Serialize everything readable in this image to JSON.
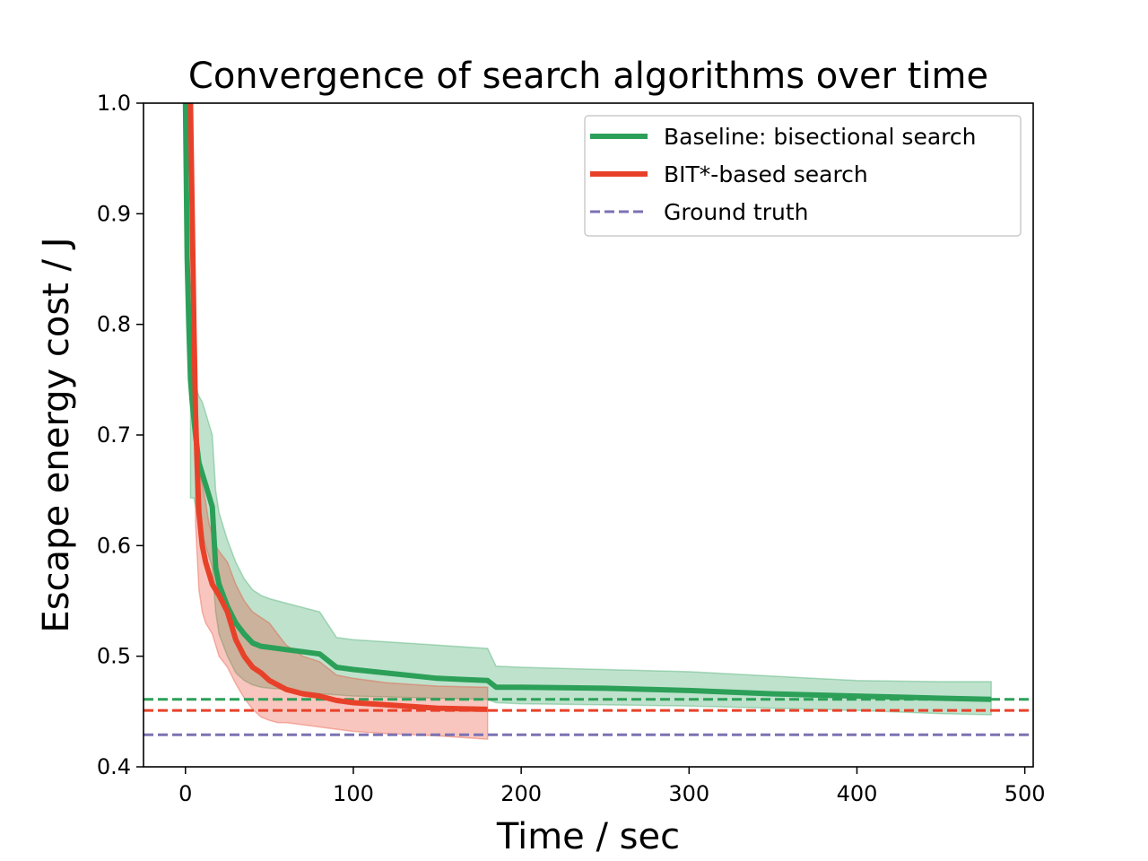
{
  "chart_data": {
    "type": "line",
    "title": "Convergence of search algorithms over time",
    "xlabel": "Time / sec",
    "ylabel": "Escape energy cost / J",
    "xlim": [
      -25,
      505
    ],
    "ylim": [
      0.4,
      1.0
    ],
    "xticks": [
      "0",
      "100",
      "200",
      "300",
      "400",
      "500"
    ],
    "yticks": [
      "0.4",
      "0.5",
      "0.6",
      "0.7",
      "0.8",
      "0.9",
      "1.0"
    ],
    "legend_position": "upper right",
    "grid": false,
    "series": [
      {
        "name": "Baseline: bisectional search",
        "color": "#2ca058",
        "x": [
          0,
          1,
          2,
          3,
          4,
          6,
          8,
          10,
          12,
          14,
          16,
          18,
          20,
          25,
          30,
          35,
          40,
          45,
          50,
          60,
          70,
          80,
          90,
          100,
          150,
          180,
          185,
          200,
          250,
          300,
          350,
          400,
          450,
          480
        ],
        "y": [
          1.0,
          0.86,
          0.8,
          0.75,
          0.73,
          0.7,
          0.675,
          0.665,
          0.655,
          0.645,
          0.635,
          0.58,
          0.565,
          0.545,
          0.53,
          0.52,
          0.512,
          0.509,
          0.508,
          0.506,
          0.504,
          0.502,
          0.49,
          0.488,
          0.48,
          0.478,
          0.472,
          0.472,
          0.471,
          0.469,
          0.466,
          0.464,
          0.462,
          0.461
        ],
        "band_x": [
          3,
          5,
          8,
          10,
          12,
          14,
          16,
          18,
          20,
          25,
          30,
          35,
          40,
          45,
          50,
          60,
          70,
          80,
          90,
          100,
          150,
          180,
          185,
          200,
          250,
          300,
          350,
          400,
          450,
          480
        ],
        "band_upper": [
          0.75,
          0.75,
          0.735,
          0.73,
          0.72,
          0.71,
          0.7,
          0.65,
          0.63,
          0.605,
          0.585,
          0.57,
          0.56,
          0.555,
          0.552,
          0.548,
          0.544,
          0.54,
          0.517,
          0.515,
          0.51,
          0.507,
          0.491,
          0.49,
          0.488,
          0.486,
          0.482,
          0.478,
          0.477,
          0.477
        ],
        "band_lower": [
          0.643,
          0.643,
          0.62,
          0.61,
          0.6,
          0.59,
          0.58,
          0.54,
          0.52,
          0.5,
          0.485,
          0.478,
          0.474,
          0.472,
          0.471,
          0.47,
          0.468,
          0.466,
          0.465,
          0.464,
          0.462,
          0.461,
          0.458,
          0.457,
          0.456,
          0.455,
          0.453,
          0.451,
          0.448,
          0.447
        ]
      },
      {
        "name": "BIT*-based search",
        "color": "#e8412a",
        "x": [
          3,
          4,
          5,
          6,
          7,
          8,
          9,
          10,
          12,
          14,
          16,
          18,
          20,
          25,
          30,
          35,
          40,
          45,
          50,
          55,
          60,
          70,
          80,
          90,
          100,
          120,
          150,
          180
        ],
        "y": [
          1.0,
          0.9,
          0.8,
          0.72,
          0.67,
          0.63,
          0.615,
          0.6,
          0.585,
          0.575,
          0.565,
          0.56,
          0.555,
          0.54,
          0.515,
          0.5,
          0.49,
          0.485,
          0.478,
          0.474,
          0.47,
          0.466,
          0.464,
          0.46,
          0.458,
          0.456,
          0.453,
          0.452
        ],
        "band_x": [
          6,
          8,
          10,
          12,
          14,
          16,
          18,
          20,
          25,
          30,
          35,
          40,
          45,
          50,
          55,
          60,
          70,
          80,
          90,
          100,
          120,
          150,
          180
        ],
        "band_upper": [
          0.69,
          0.67,
          0.655,
          0.64,
          0.62,
          0.61,
          0.6,
          0.595,
          0.585,
          0.565,
          0.55,
          0.54,
          0.535,
          0.53,
          0.52,
          0.51,
          0.5,
          0.495,
          0.483,
          0.48,
          0.476,
          0.473,
          0.472
        ],
        "band_lower": [
          0.62,
          0.56,
          0.54,
          0.53,
          0.525,
          0.52,
          0.51,
          0.5,
          0.49,
          0.475,
          0.462,
          0.452,
          0.445,
          0.442,
          0.44,
          0.44,
          0.438,
          0.436,
          0.434,
          0.432,
          0.43,
          0.428,
          0.425
        ]
      },
      {
        "name": "Ground truth",
        "color": "#7b72b3",
        "style": "dashed",
        "hline": 0.429
      }
    ],
    "reference_lines": [
      {
        "y": 0.461,
        "color": "#2ca058",
        "style": "dashed"
      },
      {
        "y": 0.451,
        "color": "#e8412a",
        "style": "dashed"
      }
    ]
  }
}
